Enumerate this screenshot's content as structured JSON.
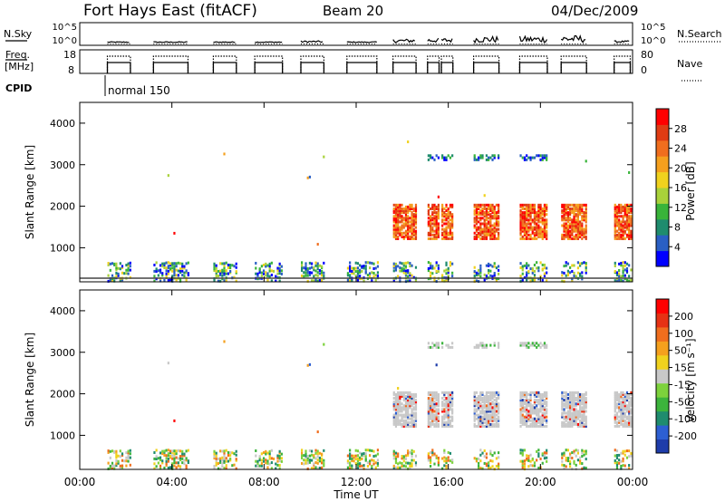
{
  "header": {
    "station": "Fort Hays East (fitACF)",
    "beam": "Beam 20",
    "date": "04/Dec/2009"
  },
  "chart_data": [
    {
      "type": "line",
      "panel": "noise",
      "left_label": "N.Sky",
      "right_label": "N.Search",
      "left_ticks": [
        "10^5",
        "10^0"
      ],
      "right_ticks": [
        "10^5",
        "10^0"
      ]
    },
    {
      "type": "line",
      "panel": "frequency",
      "left_label_1": "Freq.",
      "left_label_2": "[MHz]",
      "right_label": "Nave",
      "left_ticks": [
        "18",
        "8"
      ],
      "right_ticks": [
        "80",
        "0"
      ]
    },
    {
      "type": "annotation",
      "panel": "cpid",
      "label": "CPID",
      "mode": "normal 150"
    },
    {
      "type": "heatmap",
      "panel": "power",
      "ylabel": "Slant Range [km]",
      "ylim": [
        180,
        4500
      ],
      "yticks": [
        1000,
        2000,
        3000,
        4000
      ],
      "colorbar_label": "Power [dB]",
      "colorbar_ticks": [
        "4",
        "8",
        "12",
        "16",
        "20",
        "24",
        "28"
      ],
      "colors": [
        "#0000ff",
        "#2a5fc4",
        "#1f8c6e",
        "#39b43a",
        "#a9d23a",
        "#f0d21e",
        "#f5a01e",
        "#f06e1e",
        "#e03c14",
        "#ff0000"
      ],
      "range_bands_km": [
        [
          200,
          700
        ],
        [
          1200,
          2100
        ],
        [
          2500,
          2700
        ],
        [
          3150,
          3300
        ]
      ]
    },
    {
      "type": "heatmap",
      "panel": "velocity",
      "ylabel": "Slant Range [km]",
      "xlabel": "Time UT",
      "ylim": [
        180,
        4500
      ],
      "yticks": [
        1000,
        2000,
        3000,
        4000
      ],
      "colorbar_label": "Velocity [m s⁻¹]",
      "colorbar_ticks": [
        "200",
        "100",
        "50",
        "15",
        "-15",
        "-50",
        "-100",
        "-200"
      ],
      "colors": [
        "#1e3caa",
        "#2d5fd2",
        "#1f8c6e",
        "#3cb43c",
        "#7dd23c",
        "#c8c8c8",
        "#f0d21e",
        "#f5a01e",
        "#f06e1e",
        "#e63214",
        "#ff0000"
      ],
      "xticks": [
        "00:00",
        "04:00",
        "08:00",
        "12:00",
        "16:00",
        "20:00",
        "00:00"
      ],
      "xlim_hours": [
        0,
        24
      ]
    }
  ]
}
